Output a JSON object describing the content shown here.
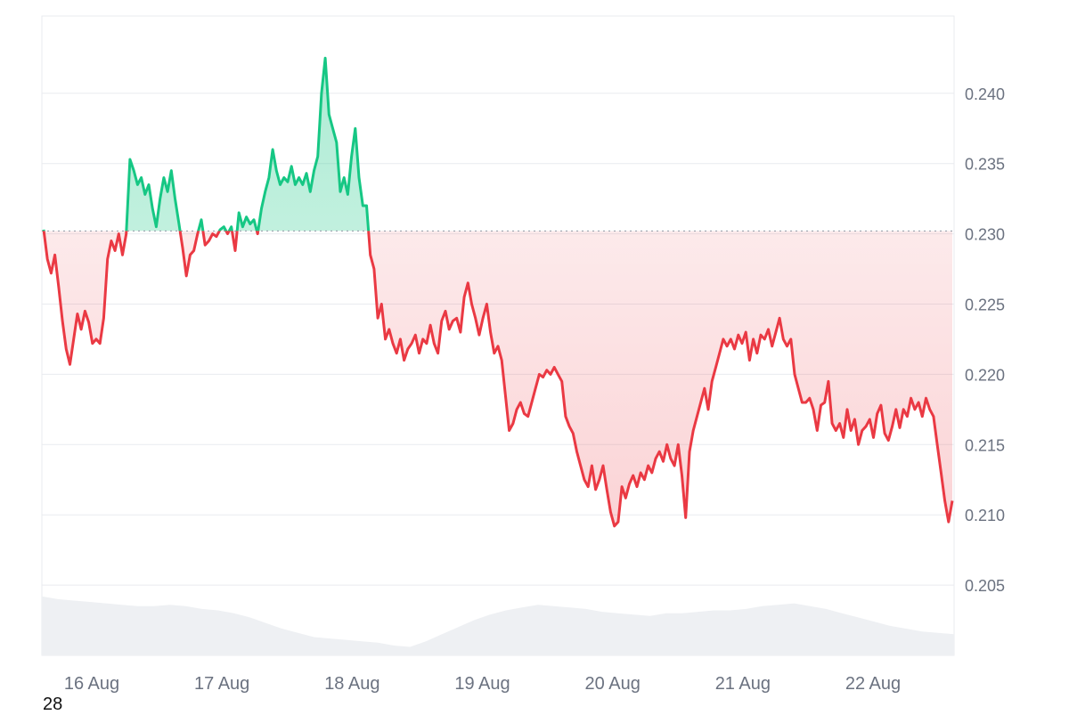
{
  "chart_data": {
    "type": "line",
    "title": "",
    "xlabel": "",
    "ylabel": "",
    "ylim": [
      0.2,
      0.2455
    ],
    "grid": true,
    "baseline": 0.2302,
    "x_tick_labels": [
      "16 Aug",
      "17 Aug",
      "18 Aug",
      "19 Aug",
      "20 Aug",
      "21 Aug",
      "22 Aug"
    ],
    "y_tick_labels": [
      "0.240",
      "0.235",
      "0.230",
      "0.225",
      "0.220",
      "0.215",
      "0.210",
      "0.205"
    ],
    "y_ticks": [
      0.24,
      0.235,
      0.23,
      0.225,
      0.22,
      0.215,
      0.21,
      0.205
    ],
    "colors": {
      "up": "#16c784",
      "down": "#ea3943",
      "volume": "#eef0f3",
      "grid": "#e9ebef"
    },
    "series": [
      {
        "values": [
          0.2303,
          0.2282,
          0.2272,
          0.2285,
          0.2262,
          0.2238,
          0.2218,
          0.2207,
          0.2225,
          0.2243,
          0.2232,
          0.2245,
          0.2237,
          0.2222,
          0.2225,
          0.2222,
          0.224,
          0.2282,
          0.2295,
          0.2288,
          0.23,
          0.2285,
          0.23,
          0.2353,
          0.2345,
          0.2335,
          0.234,
          0.2328,
          0.2335,
          0.2318,
          0.2305,
          0.2325,
          0.234,
          0.233,
          0.2345,
          0.2325,
          0.2308,
          0.229,
          0.227,
          0.2285,
          0.2288,
          0.23,
          0.231,
          0.2292,
          0.2295,
          0.23,
          0.2298,
          0.2303,
          0.2305,
          0.23,
          0.2305,
          0.2288,
          0.2315,
          0.2305,
          0.2312,
          0.2307,
          0.231,
          0.23,
          0.2318,
          0.233,
          0.234,
          0.236,
          0.2345,
          0.2335,
          0.234,
          0.2337,
          0.2348,
          0.2335,
          0.234,
          0.2335,
          0.2343,
          0.233,
          0.2345,
          0.2355,
          0.24,
          0.2425,
          0.2385,
          0.2375,
          0.2365,
          0.233,
          0.234,
          0.2328,
          0.2355,
          0.2375,
          0.234,
          0.232,
          0.232,
          0.2285,
          0.2275,
          0.224,
          0.225,
          0.2225,
          0.2232,
          0.2222,
          0.2215,
          0.2225,
          0.221,
          0.2218,
          0.2222,
          0.2228,
          0.2215,
          0.2225,
          0.2222,
          0.2235,
          0.2222,
          0.2215,
          0.2238,
          0.2245,
          0.2232,
          0.2238,
          0.224,
          0.223,
          0.2255,
          0.2265,
          0.225,
          0.224,
          0.2228,
          0.224,
          0.225,
          0.223,
          0.2215,
          0.222,
          0.221,
          0.2185,
          0.216,
          0.2165,
          0.2175,
          0.218,
          0.2172,
          0.217,
          0.218,
          0.219,
          0.22,
          0.2198,
          0.2203,
          0.22,
          0.2205,
          0.22,
          0.2195,
          0.217,
          0.2163,
          0.2158,
          0.2145,
          0.2135,
          0.2125,
          0.212,
          0.2135,
          0.2118,
          0.2125,
          0.2135,
          0.2118,
          0.2102,
          0.2092,
          0.2095,
          0.212,
          0.2112,
          0.2122,
          0.2128,
          0.212,
          0.213,
          0.2125,
          0.2135,
          0.213,
          0.214,
          0.2145,
          0.2138,
          0.215,
          0.214,
          0.2135,
          0.215,
          0.2128,
          0.2098,
          0.2145,
          0.216,
          0.217,
          0.218,
          0.219,
          0.2175,
          0.2195,
          0.2205,
          0.2215,
          0.2225,
          0.222,
          0.2225,
          0.2218,
          0.2228,
          0.2222,
          0.223,
          0.221,
          0.2225,
          0.2215,
          0.2228,
          0.2225,
          0.2232,
          0.222,
          0.223,
          0.224,
          0.2225,
          0.222,
          0.2225,
          0.22,
          0.219,
          0.218,
          0.218,
          0.2183,
          0.2175,
          0.216,
          0.2178,
          0.218,
          0.2195,
          0.2165,
          0.216,
          0.2165,
          0.2155,
          0.2175,
          0.216,
          0.2168,
          0.215,
          0.216,
          0.2163,
          0.2168,
          0.2155,
          0.2172,
          0.2178,
          0.2158,
          0.2153,
          0.2163,
          0.2175,
          0.2162,
          0.2175,
          0.217,
          0.2183,
          0.2175,
          0.218,
          0.217,
          0.2183,
          0.2175,
          0.217,
          0.215,
          0.213,
          0.211,
          0.2095,
          0.211
        ]
      }
    ],
    "volume_profile": [
      0.0042,
      0.004,
      0.0039,
      0.0038,
      0.0037,
      0.0036,
      0.0035,
      0.0035,
      0.0036,
      0.0035,
      0.0033,
      0.0032,
      0.003,
      0.0027,
      0.0023,
      0.0019,
      0.0016,
      0.0013,
      0.0012,
      0.0011,
      0.001,
      0.0009,
      0.0007,
      0.0006,
      0.001,
      0.0015,
      0.002,
      0.0025,
      0.0029,
      0.0032,
      0.0034,
      0.0036,
      0.0035,
      0.0034,
      0.0033,
      0.0031,
      0.003,
      0.0029,
      0.0028,
      0.003,
      0.003,
      0.0031,
      0.0032,
      0.0032,
      0.0033,
      0.0035,
      0.0036,
      0.0037,
      0.0035,
      0.0033,
      0.003,
      0.0027,
      0.0024,
      0.0021,
      0.0019,
      0.0017,
      0.0016,
      0.0015
    ]
  },
  "footer": {
    "number": "28"
  }
}
